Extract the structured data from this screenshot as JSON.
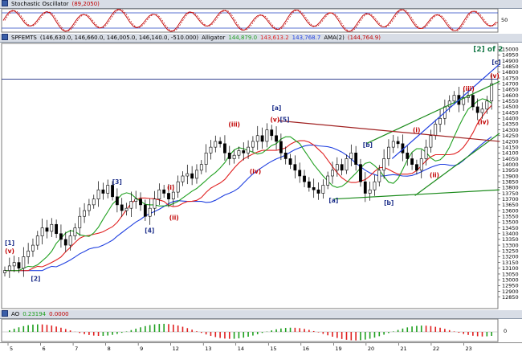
{
  "stochastic": {
    "title": "Stochastic Oscillator",
    "value": "(89,2050)",
    "axis_label": "50"
  },
  "price_pane": {
    "symbol": "SPFEMTS",
    "ohlc": "(146,630.0, 146,660.0, 146,005.0, 146,140.0, -510.000)",
    "alligator_label": "Alligator",
    "alligator_values": [
      "144,879.0",
      "143,613.2",
      "143,768.7"
    ],
    "ama_label": "AMA(2)",
    "ama_value": "(144,764.9)",
    "wave_count_label": "[2] of 2",
    "colors": {
      "jaw": "#2040e0",
      "teeth": "#e02020",
      "lips": "#20a020",
      "ama": "#c00000",
      "labels_blue": "#1d2f8a",
      "labels_red": "#c00000"
    }
  },
  "ao_pane": {
    "title": "AO",
    "value1": "0.23194",
    "value2": "0.0000",
    "axis_label": "0"
  },
  "chart_data": {
    "type": "candlestick",
    "ylim": [
      12750,
      15050
    ],
    "y_ticks": [
      "15000",
      "14950",
      "14900",
      "14850",
      "14800",
      "14750",
      "14700",
      "14650",
      "14600",
      "14550",
      "14500",
      "14450",
      "14400",
      "14350",
      "14300",
      "14250",
      "14200",
      "14150",
      "14100",
      "14050",
      "14000",
      "13950",
      "13900",
      "13850",
      "13800",
      "13750",
      "13700",
      "13650",
      "13600",
      "13550",
      "13500",
      "13450",
      "13400",
      "13350",
      "13300",
      "13250",
      "13200",
      "13150",
      "13100",
      "13050",
      "13000",
      "12950",
      "12900",
      "12850"
    ],
    "x_ticks": [
      "5",
      "6",
      "7",
      "8",
      "9",
      "12",
      "13",
      "14",
      "15",
      "16",
      "19",
      "20",
      "21",
      "22",
      "23"
    ],
    "horizontal_line": 14740,
    "wave_labels": [
      {
        "text": "[1]",
        "day": 0.05,
        "price": 13300,
        "color": "blue"
      },
      {
        "text": "(v)",
        "day": 0.05,
        "price": 13230,
        "color": "red"
      },
      {
        "text": "[2]",
        "day": 0.85,
        "price": 12990,
        "color": "blue"
      },
      {
        "text": "[3]",
        "day": 3.35,
        "price": 13830,
        "color": "blue"
      },
      {
        "text": "[4]",
        "day": 4.35,
        "price": 13410,
        "color": "blue"
      },
      {
        "text": "(i)",
        "day": 5.0,
        "price": 13780,
        "color": "red"
      },
      {
        "text": "(ii)",
        "day": 5.1,
        "price": 13520,
        "color": "red"
      },
      {
        "text": "(iii)",
        "day": 6.95,
        "price": 14330,
        "color": "red"
      },
      {
        "text": "(iv)",
        "day": 7.6,
        "price": 13920,
        "color": "red"
      },
      {
        "text": "[a]",
        "day": 8.25,
        "price": 14470,
        "color": "blue"
      },
      {
        "text": "(v)",
        "day": 8.2,
        "price": 14370,
        "color": "red"
      },
      {
        "text": "[5]",
        "day": 8.5,
        "price": 14370,
        "color": "blue"
      },
      {
        "text": "[a]",
        "day": 10.0,
        "price": 13670,
        "color": "blue"
      },
      {
        "text": "[b]",
        "day": 11.05,
        "price": 14150,
        "color": "blue"
      },
      {
        "text": "[b]",
        "day": 11.7,
        "price": 13650,
        "color": "blue"
      },
      {
        "text": "(i)",
        "day": 12.55,
        "price": 14280,
        "color": "red"
      },
      {
        "text": "(ii)",
        "day": 13.1,
        "price": 13890,
        "color": "red"
      },
      {
        "text": "(iii)",
        "day": 14.15,
        "price": 14640,
        "color": "red"
      },
      {
        "text": "(iv)",
        "day": 14.6,
        "price": 14350,
        "color": "red"
      },
      {
        "text": "[c]",
        "day": 15.0,
        "price": 14870,
        "color": "blue"
      },
      {
        "text": "(v)",
        "day": 14.95,
        "price": 14750,
        "color": "red"
      }
    ],
    "series": [
      {
        "name": "close",
        "values": [
          13080,
          13120,
          13150,
          13100,
          13200,
          13250,
          13300,
          13380,
          13450,
          13420,
          13480,
          13400,
          13350,
          13300,
          13380,
          13450,
          13550,
          13600,
          13650,
          13700,
          13780,
          13750,
          13820,
          13720,
          13650,
          13600,
          13620,
          13680,
          13700,
          13650,
          13550,
          13620,
          13700,
          13780,
          13750,
          13700,
          13760,
          13850,
          13900,
          13920,
          13880,
          13950,
          14000,
          14100,
          14150,
          14200,
          14180,
          14100,
          14050,
          14080,
          14120,
          14100,
          14150,
          14200,
          14250,
          14200,
          14300,
          14250,
          14200,
          14100,
          14050,
          14000,
          13950,
          13900,
          13850,
          13800,
          13780,
          13750,
          13820,
          13900,
          13950,
          14000,
          13950,
          14050,
          14100,
          14000,
          13850,
          13750,
          13780,
          13850,
          13950,
          14050,
          14150,
          14200,
          14180,
          14100,
          14050,
          14000,
          13950,
          14050,
          14150,
          14250,
          14350,
          14400,
          14500,
          14550,
          14600,
          14520,
          14580,
          14600,
          14500,
          14450,
          14480,
          14550,
          14700
        ]
      }
    ]
  }
}
